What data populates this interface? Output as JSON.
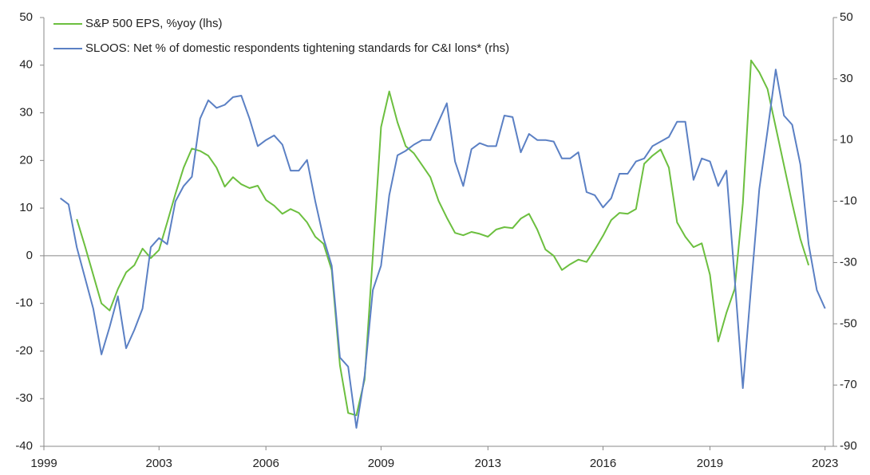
{
  "chart_data": {
    "type": "line",
    "categories": [
      "1999",
      null,
      null,
      null,
      null,
      null,
      null,
      null,
      null,
      null,
      null,
      null,
      null,
      null,
      "2003",
      null,
      null,
      null,
      null,
      null,
      null,
      null,
      null,
      null,
      null,
      null,
      null,
      "2006",
      null,
      null,
      null,
      null,
      null,
      null,
      null,
      null,
      null,
      null,
      null,
      null,
      null,
      "2009",
      null,
      null,
      null,
      null,
      null,
      null,
      null,
      null,
      null,
      null,
      null,
      null,
      "2013",
      null,
      null,
      null,
      null,
      null,
      null,
      null,
      null,
      null,
      null,
      null,
      null,
      null,
      "2016",
      null,
      null,
      null,
      null,
      null,
      null,
      null,
      null,
      null,
      null,
      null,
      null,
      "2019",
      null,
      null,
      null,
      null,
      null,
      null,
      null,
      null,
      null,
      null,
      null,
      null,
      null,
      "2023",
      null
    ],
    "series": [
      {
        "name": "S&P 500 EPS, %yoy (lhs)",
        "color": "#6cbf3f",
        "axis": "y",
        "values": [
          null,
          null,
          null,
          null,
          7.7,
          2,
          -4,
          -10,
          -11.5,
          -7,
          -3.5,
          -2,
          1.5,
          -0.5,
          1.2,
          7,
          13,
          18.5,
          22.5,
          22,
          21,
          18.5,
          14.5,
          16.5,
          15,
          14.2,
          14.7,
          11.7,
          10.5,
          8.8,
          9.8,
          9,
          7,
          4,
          2.5,
          -3,
          -23,
          -33,
          -33.5,
          -26,
          0,
          27,
          34.5,
          28,
          23,
          21.5,
          19,
          16.5,
          11.5,
          8,
          4.8,
          4.3,
          5,
          4.6,
          4,
          5.5,
          6,
          5.8,
          7.8,
          8.8,
          5.5,
          1.3,
          0,
          -3,
          -1.8,
          -0.8,
          -1.3,
          1.3,
          4.2,
          7.5,
          9,
          8.8,
          9.8,
          19.3,
          21,
          22.3,
          18.5,
          7,
          4,
          1.8,
          2.6,
          -4,
          -18,
          -12,
          -7,
          11,
          41,
          38.5,
          35,
          27,
          19,
          11,
          3.5,
          -2,
          null,
          null,
          null
        ]
      },
      {
        "name": "SLOOS: Net % of domestic respondents tightening standards for C&I lons* (rhs)",
        "color": "#5b80c4",
        "axis": "y2",
        "values": [
          null,
          null,
          -9,
          -11,
          -25,
          -35,
          -45,
          -60,
          -51,
          -41,
          -58,
          -52,
          -45,
          -25,
          -22,
          -24,
          -10,
          -5,
          -2,
          17,
          23,
          20.5,
          21.5,
          24,
          24.5,
          17,
          8,
          10,
          11.5,
          8.5,
          0,
          0,
          3.5,
          -10,
          -22,
          -31,
          -61,
          -64,
          -84,
          -67,
          -39,
          -31,
          -8,
          5,
          6.5,
          8.5,
          10,
          10,
          16,
          22,
          3,
          -5,
          7,
          9,
          8,
          8,
          18,
          17.5,
          6,
          12,
          10,
          10,
          9.5,
          4,
          4,
          6,
          -7,
          -8,
          -12,
          -9,
          -1,
          -1,
          3,
          4,
          8,
          9.5,
          11,
          16,
          16,
          -3,
          4,
          3,
          -5,
          0,
          -35,
          -71,
          -38,
          -6,
          13,
          33,
          18,
          15,
          2,
          -24,
          -39,
          -45,
          null
        ]
      }
    ],
    "ylim": [
      -40,
      50
    ],
    "yticks": [
      -40,
      -30,
      -20,
      -10,
      0,
      10,
      20,
      30,
      40,
      50
    ],
    "y2lim": [
      -90,
      50
    ],
    "y2ticks": [
      -90,
      -70,
      -50,
      -30,
      -10,
      10,
      30,
      50
    ],
    "grid": false,
    "legend": "top-left"
  }
}
